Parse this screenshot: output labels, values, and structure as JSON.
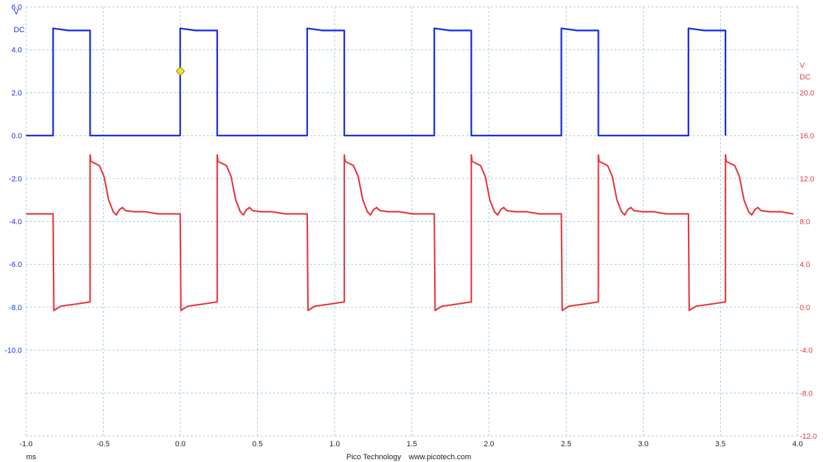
{
  "chart_data": {
    "type": "line",
    "title": "",
    "x": {
      "range": [
        -1.0,
        4.0
      ],
      "ticks": [
        -1.0,
        -0.5,
        0.0,
        0.5,
        1.0,
        1.5,
        2.0,
        2.5,
        3.0,
        3.5,
        4.0
      ],
      "tick_labels": [
        "-1.0",
        "-0.5",
        "0.0",
        "0.5",
        "1.0",
        "1.5",
        "2.0",
        "2.5",
        "3.0",
        "3.5",
        "4.0"
      ],
      "unit": "ms"
    },
    "y_left": {
      "range": [
        -14.0,
        6.0
      ],
      "ticks": [
        6.0,
        4.0,
        2.0,
        0.0,
        -2.0,
        -4.0,
        -6.0,
        -8.0,
        -10.0,
        -12.0
      ],
      "tick_labels": [
        "6.0",
        "4.0",
        "2.0",
        "0.0",
        "-2.0",
        "-4.0",
        "-6.0",
        "-8.0",
        "-10.0",
        ""
      ],
      "unit_top": "V",
      "unit_bottom": "DC",
      "color": "#1a2ee6"
    },
    "y_right": {
      "range": [
        -12.0,
        28.0
      ],
      "ticks": [
        20.0,
        16.0,
        12.0,
        8.0,
        4.0,
        0.0,
        -4.0,
        -8.0,
        -12.0
      ],
      "tick_labels": [
        "20.0",
        "16.0",
        "12.0",
        "8.0",
        "4.0",
        "0.0",
        "-4.0",
        "-8.0",
        "-12.0"
      ],
      "unit_top": "V",
      "unit_bottom": "DC",
      "color": "#e8343a"
    },
    "grid": true,
    "period_ms": 0.8235,
    "first_edge_ms": -0.825,
    "series": [
      {
        "axis": "left",
        "color": "#1a2ee6",
        "points": [
          [
            0.0,
            0.0
          ],
          [
            0.0,
            5.0
          ],
          [
            0.05,
            4.95
          ],
          [
            0.1,
            4.9
          ],
          [
            0.15,
            4.9
          ],
          [
            0.24,
            4.9
          ],
          [
            0.24,
            0.0
          ],
          [
            0.8235,
            0.0
          ]
        ]
      },
      {
        "axis": "right",
        "color": "#e8343a",
        "points": [
          [
            0.0,
            8.7
          ],
          [
            0.005,
            -0.3
          ],
          [
            0.05,
            0.1
          ],
          [
            0.15,
            0.3
          ],
          [
            0.24,
            0.5
          ],
          [
            0.24,
            14.2
          ],
          [
            0.245,
            13.6
          ],
          [
            0.3,
            13.2
          ],
          [
            0.33,
            12.2
          ],
          [
            0.36,
            10.0
          ],
          [
            0.39,
            8.9
          ],
          [
            0.41,
            8.6
          ],
          [
            0.43,
            9.1
          ],
          [
            0.45,
            9.3
          ],
          [
            0.47,
            9.0
          ],
          [
            0.53,
            8.9
          ],
          [
            0.6,
            8.9
          ],
          [
            0.68,
            8.7
          ],
          [
            0.8235,
            8.7
          ]
        ]
      }
    ],
    "marker": {
      "x": 0.0,
      "y": 3.0,
      "axis": "left",
      "color": "#f2e51a"
    }
  },
  "footer": {
    "x_unit": "ms",
    "brand": "Pico Technology",
    "url": "www.picotech.com"
  }
}
